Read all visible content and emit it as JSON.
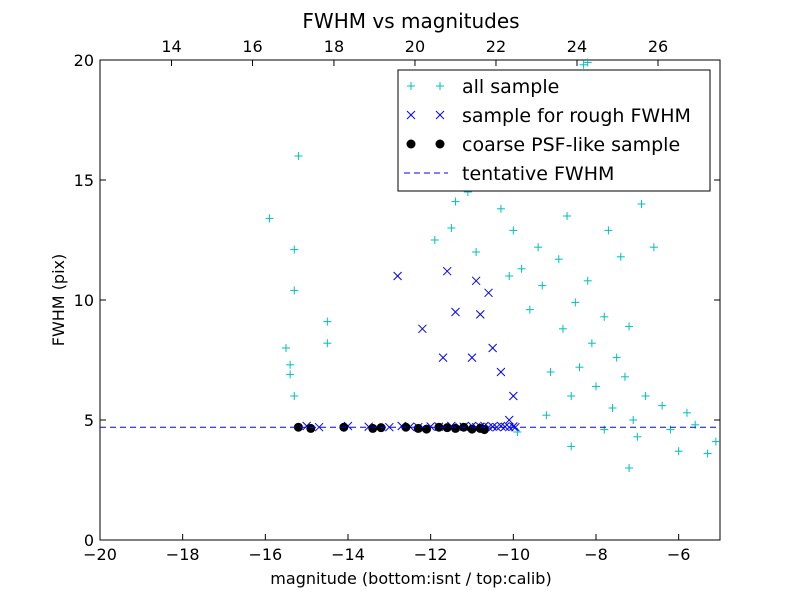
{
  "chart_data": {
    "type": "scatter",
    "title": "FWHM vs magnitudes",
    "xlabel": "magnitude (bottom:isnt / top:calib)",
    "ylabel": "FWHM (pix)",
    "xlim": [
      -20,
      -5
    ],
    "ylim": [
      0,
      20
    ],
    "x_ticks": [
      -20,
      -18,
      -16,
      -14,
      -12,
      -10,
      -8,
      -6
    ],
    "x_tick_labels": [
      "−20",
      "−18",
      "−16",
      "−14",
      "−12",
      "−10",
      "−8",
      "−6"
    ],
    "y_ticks": [
      0,
      5,
      10,
      15,
      20
    ],
    "y_tick_labels": [
      "0",
      "5",
      "10",
      "15",
      "20"
    ],
    "top_axis": {
      "label_values": [
        "14",
        "16",
        "18",
        "20",
        "22",
        "24",
        "26"
      ],
      "positions_bottom_units": [
        -18.27,
        -16.31,
        -14.34,
        -12.38,
        -10.42,
        -8.46,
        -6.5
      ]
    },
    "grid": false,
    "legend_position": "upper-right",
    "series": [
      {
        "name": "all sample",
        "marker": "+",
        "color": "#00BFBF",
        "x": [
          -15.9,
          -15.2,
          -15.3,
          -15.3,
          -15.5,
          -15.4,
          -15.3,
          -14.5,
          -14.5,
          -15.4,
          -11.9,
          -11.5,
          -11.4,
          -11.1,
          -10.9,
          -10.6,
          -10.3,
          -10.1,
          -10.0,
          -9.8,
          -9.6,
          -9.5,
          -9.4,
          -9.3,
          -9.1,
          -9.0,
          -8.9,
          -8.8,
          -8.7,
          -8.6,
          -8.5,
          -8.4,
          -8.3,
          -8.2,
          -8.1,
          -8.0,
          -7.9,
          -7.8,
          -7.7,
          -7.6,
          -7.5,
          -7.4,
          -7.3,
          -7.2,
          -7.1,
          -7.0,
          -6.8,
          -6.6,
          -6.4,
          -6.2,
          -6.0,
          -5.8,
          -5.6,
          -5.3,
          -5.1,
          -8.3,
          -8.2,
          -7.5,
          -6.9,
          -9.9,
          -7.2,
          -8.6,
          -7.8,
          -9.2
        ],
        "y": [
          13.4,
          16.0,
          12.1,
          10.4,
          8.0,
          6.9,
          6.0,
          9.1,
          8.2,
          7.3,
          12.5,
          13.0,
          14.1,
          14.5,
          12.0,
          14.8,
          13.8,
          11.0,
          12.9,
          11.3,
          9.6,
          14.8,
          12.2,
          10.6,
          7.0,
          15.2,
          11.7,
          8.8,
          13.5,
          6.0,
          9.9,
          7.2,
          18.7,
          10.8,
          8.2,
          6.4,
          14.7,
          9.3,
          12.9,
          5.5,
          7.6,
          11.8,
          6.8,
          8.9,
          5.0,
          4.3,
          6.0,
          12.2,
          5.6,
          4.6,
          3.7,
          5.3,
          4.8,
          3.6,
          4.1,
          19.8,
          19.9,
          15.2,
          14.0,
          4.5,
          3.0,
          3.9,
          4.6,
          5.2
        ]
      },
      {
        "name": "sample for rough FWHM",
        "marker": "x",
        "color": "#0000FF",
        "x": [
          -15.0,
          -14.7,
          -14.0,
          -13.5,
          -13.0,
          -12.7,
          -12.5,
          -12.3,
          -12.0,
          -11.8,
          -11.5,
          -11.3,
          -11.2,
          -11.0,
          -10.9,
          -10.8,
          -10.7,
          -10.6,
          -10.5,
          -10.4,
          -10.3,
          -10.2,
          -10.1,
          -10.0,
          -9.95,
          -12.8,
          -12.2,
          -11.7,
          -11.6,
          -11.4,
          -11.0,
          -10.8,
          -10.5,
          -10.3,
          -10.1,
          -10.0,
          -10.9,
          -10.6
        ],
        "y": [
          4.75,
          4.7,
          4.75,
          4.72,
          4.7,
          4.75,
          4.72,
          4.7,
          4.73,
          4.72,
          4.75,
          4.7,
          4.72,
          4.75,
          4.7,
          4.72,
          4.75,
          4.7,
          4.72,
          4.7,
          4.75,
          4.72,
          4.7,
          4.73,
          4.7,
          11.0,
          8.8,
          7.6,
          11.2,
          9.5,
          7.6,
          9.4,
          8.0,
          7.0,
          5.0,
          6.0,
          10.8,
          10.3
        ]
      },
      {
        "name": "coarse PSF-like sample",
        "marker": "o",
        "color": "#000000",
        "x": [
          -15.2,
          -14.9,
          -14.1,
          -13.4,
          -13.2,
          -12.6,
          -12.3,
          -12.1,
          -11.8,
          -11.6,
          -11.4,
          -11.2,
          -11.0,
          -10.8,
          -10.7
        ],
        "y": [
          4.7,
          4.65,
          4.7,
          4.65,
          4.68,
          4.7,
          4.65,
          4.62,
          4.7,
          4.68,
          4.65,
          4.7,
          4.62,
          4.65,
          4.6
        ]
      },
      {
        "name": "tentative FWHM",
        "marker": "dashed-line",
        "color": "#0000FF",
        "x": [
          -20,
          -5
        ],
        "y": [
          4.7,
          4.7
        ]
      }
    ]
  }
}
